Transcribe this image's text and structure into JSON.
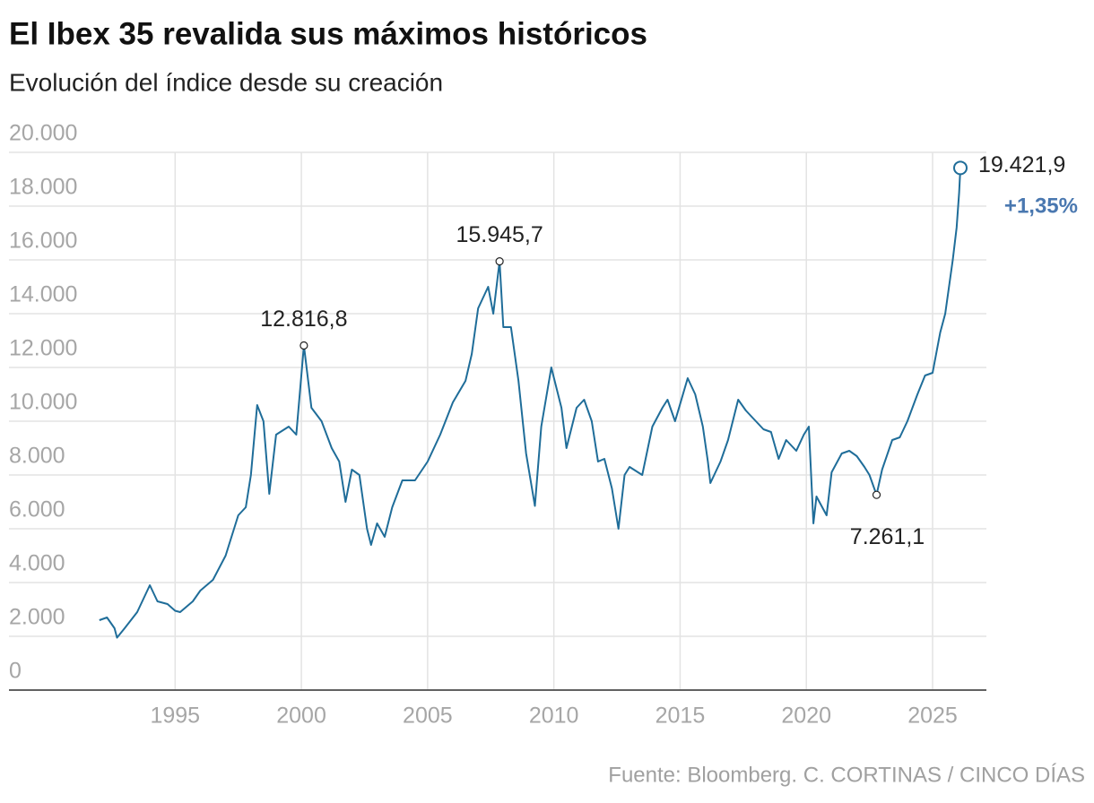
{
  "chart_data": {
    "type": "line",
    "title": "El Ibex 35 revalida sus máximos históricos",
    "subtitle": "Evolución del índice desde su creación",
    "source": "Fuente: Bloomberg. C. CORTINAS / CINCO DÍAS",
    "x": [
      1992.0,
      1992.3,
      1992.6,
      1992.7,
      1993.0,
      1993.5,
      1994.0,
      1994.3,
      1994.7,
      1995.0,
      1995.2,
      1995.7,
      1996.0,
      1996.5,
      1997.0,
      1997.5,
      1997.8,
      1998.0,
      1998.25,
      1998.5,
      1998.73,
      1999.0,
      1999.5,
      1999.8,
      2000.1,
      2000.4,
      2000.8,
      2001.2,
      2001.5,
      2001.75,
      2002.0,
      2002.3,
      2002.6,
      2002.76,
      2003.0,
      2003.3,
      2003.6,
      2004.0,
      2004.5,
      2005.0,
      2005.5,
      2006.0,
      2006.5,
      2006.75,
      2007.0,
      2007.4,
      2007.6,
      2007.85,
      2008.0,
      2008.3,
      2008.6,
      2008.9,
      2009.25,
      2009.5,
      2009.9,
      2010.3,
      2010.5,
      2010.9,
      2011.2,
      2011.5,
      2011.75,
      2012.0,
      2012.3,
      2012.56,
      2012.8,
      2013.0,
      2013.5,
      2013.9,
      2014.3,
      2014.5,
      2014.8,
      2015.3,
      2015.6,
      2015.9,
      2016.1,
      2016.2,
      2016.6,
      2016.9,
      2017.3,
      2017.6,
      2017.9,
      2018.3,
      2018.6,
      2018.9,
      2019.2,
      2019.6,
      2019.9,
      2020.1,
      2020.28,
      2020.4,
      2020.8,
      2021.0,
      2021.4,
      2021.7,
      2022.0,
      2022.3,
      2022.5,
      2022.78,
      2023.0,
      2023.4,
      2023.7,
      2024.0,
      2024.4,
      2024.7,
      2025.0,
      2025.3,
      2025.5,
      2025.8,
      2025.95,
      2026.05,
      2026.1
    ],
    "series": [
      {
        "name": "Ibex 35",
        "color": "#1f6d99",
        "values": [
          2600,
          2700,
          2300,
          1950,
          2300,
          2900,
          3900,
          3300,
          3200,
          2950,
          2900,
          3300,
          3700,
          4100,
          5000,
          6500,
          6800,
          8000,
          10600,
          10000,
          7300,
          9500,
          9800,
          9500,
          12816.8,
          10500,
          10000,
          9000,
          8500,
          7000,
          8200,
          8000,
          6000,
          5400,
          6200,
          5700,
          6800,
          7800,
          7800,
          8500,
          9500,
          10700,
          11500,
          12500,
          14200,
          15000,
          14000,
          15945.7,
          13500,
          13500,
          11500,
          8800,
          6850,
          9800,
          12000,
          10500,
          9000,
          10500,
          10800,
          10000,
          8500,
          8600,
          7500,
          6000,
          8000,
          8300,
          8000,
          9800,
          10500,
          10800,
          10000,
          11600,
          11000,
          9800,
          8500,
          7700,
          8500,
          9300,
          10800,
          10400,
          10100,
          9700,
          9600,
          8600,
          9300,
          8900,
          9500,
          9800,
          6200,
          7200,
          6500,
          8100,
          8800,
          8900,
          8700,
          8300,
          8000,
          7261.1,
          8200,
          9300,
          9400,
          10000,
          11000,
          11700,
          11800,
          13300,
          14000,
          16000,
          17200,
          18500,
          19421.9
        ]
      }
    ],
    "xlim": [
      1988.42,
      2027.13
    ],
    "xticks": [
      1995,
      2000,
      2005,
      2010,
      2015,
      2020,
      2025
    ],
    "ylim": [
      0,
      20000
    ],
    "yticks": [
      0,
      {
        "value": 2000,
        "label": "2.000"
      },
      {
        "value": 4000,
        "label": "4.000"
      },
      {
        "value": 6000,
        "label": "6.000"
      },
      {
        "value": 8000,
        "label": "8.000"
      },
      {
        "value": 10000,
        "label": "10.000"
      },
      {
        "value": 12000,
        "label": "12.000"
      },
      {
        "value": 14000,
        "label": "14.000"
      },
      {
        "value": 16000,
        "label": "16.000"
      },
      {
        "value": 18000,
        "label": "18.000"
      },
      {
        "value": 20000,
        "label": "20.000"
      }
    ],
    "grid": true,
    "annotations": [
      {
        "x": 2000.1,
        "y": 12816.8,
        "label": "12.816,8"
      },
      {
        "x": 2007.85,
        "y": 15945.7,
        "label": "15.945,7"
      },
      {
        "x": 2022.78,
        "y": 7261.1,
        "label": "7.261,1"
      },
      {
        "x": 2026.1,
        "y": 19421.9,
        "label": "19.421,9"
      }
    ],
    "change_label": "+1,35%",
    "change_color": "#4a78b0"
  }
}
